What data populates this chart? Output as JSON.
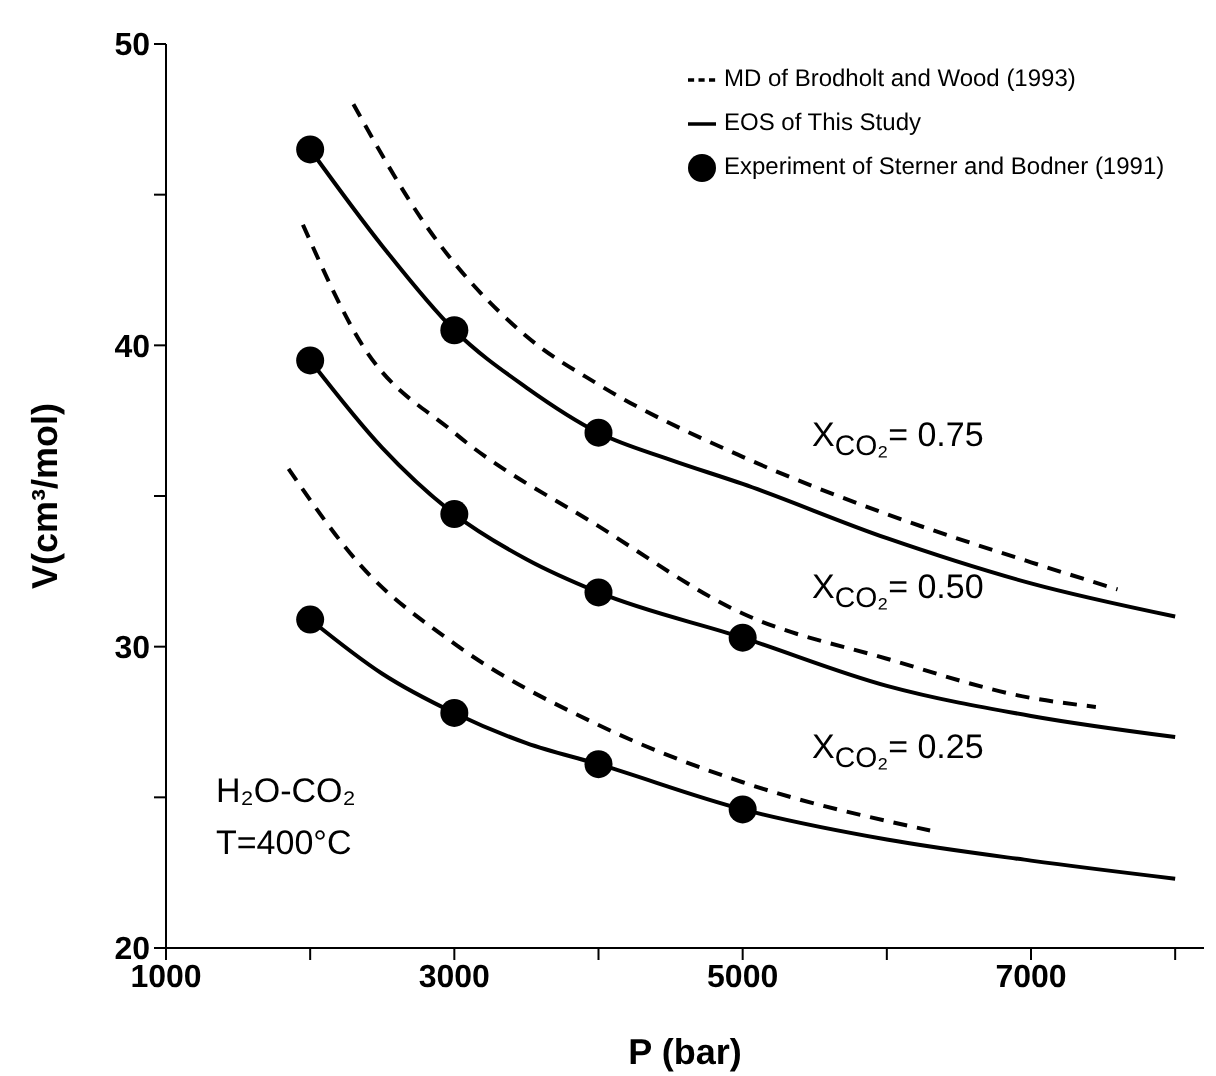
{
  "chart_data": {
    "type": "line",
    "xlabel": "P (bar)",
    "ylabel": "V(cm³/mol)",
    "xlim": [
      1000,
      8200
    ],
    "xticks": [
      1000,
      {
        "value": 2000,
        "label": null
      },
      3000,
      {
        "value": 4000,
        "label": null
      },
      5000,
      {
        "value": 6000,
        "label": null
      },
      7000,
      {
        "value": 8000,
        "label": null
      }
    ],
    "ylim": [
      20,
      50
    ],
    "yticks": [
      20,
      {
        "value": 25,
        "label": null
      },
      30,
      {
        "value": 35,
        "label": null
      },
      40,
      {
        "value": 45,
        "label": null
      },
      50
    ],
    "legend": "top right",
    "series": [
      {
        "name": "MD of Brodholt and Wood (1993)",
        "line_style": "dashed",
        "color": "#000000",
        "x": [
          2300,
          2800,
          3500,
          4000,
          5000,
          6000,
          7000,
          7600
        ],
        "values": [
          48.0,
          44.0,
          40.3,
          38.7,
          36.3,
          34.4,
          32.8,
          31.9
        ]
      },
      {
        "name": "EOS of This Study",
        "line_style": "solid",
        "color": "#000000",
        "x": [
          2000,
          2500,
          3000,
          3500,
          4000,
          4500,
          5000,
          6000,
          7000,
          8000
        ],
        "values": [
          46.5,
          43.3,
          40.5,
          38.6,
          37.1,
          36.2,
          35.4,
          33.6,
          32.1,
          31.0
        ]
      },
      {
        "name": "Experiment of Sterner and Bodner (1991)",
        "type": "scatter",
        "marker": "circle",
        "color": "#000000",
        "x": [
          2000,
          3000,
          4000,
          2000,
          3000,
          4000,
          5000,
          2000,
          3000,
          4000,
          5000
        ],
        "values": [
          46.5,
          40.5,
          37.1,
          39.5,
          34.4,
          31.8,
          30.3,
          30.9,
          27.8,
          26.1,
          24.6
        ]
      },
      {
        "line_style": "dashed",
        "color": "#000000",
        "x": [
          1950,
          2350,
          3000,
          4000,
          5000,
          6000,
          7000,
          7450
        ],
        "values": [
          44.0,
          40.1,
          37.1,
          34.0,
          31.1,
          29.6,
          28.3,
          28.0
        ]
      },
      {
        "line_style": "solid",
        "color": "#000000",
        "x": [
          2000,
          2500,
          3000,
          3500,
          4000,
          5000,
          6000,
          7000,
          8000
        ],
        "values": [
          39.5,
          36.6,
          34.4,
          32.9,
          31.8,
          30.3,
          28.7,
          27.7,
          27.0
        ]
      },
      {
        "line_style": "dashed",
        "color": "#000000",
        "x": [
          1850,
          2350,
          3000,
          4000,
          5000,
          6300
        ],
        "values": [
          35.9,
          32.7,
          30.1,
          27.4,
          25.5,
          23.9
        ]
      },
      {
        "line_style": "solid",
        "color": "#000000",
        "x": [
          2000,
          2500,
          3000,
          3500,
          4000,
          5000,
          6000,
          7000,
          8000
        ],
        "values": [
          30.9,
          29.1,
          27.8,
          26.8,
          26.1,
          24.6,
          23.6,
          22.9,
          22.3
        ]
      }
    ],
    "annotations": [
      "X$_{CO₂}$= 0.75",
      "X$_{CO₂}$= 0.50",
      "X$_{CO₂}$= 0.25",
      "H₂O-CO₂",
      "T=400°C"
    ]
  }
}
